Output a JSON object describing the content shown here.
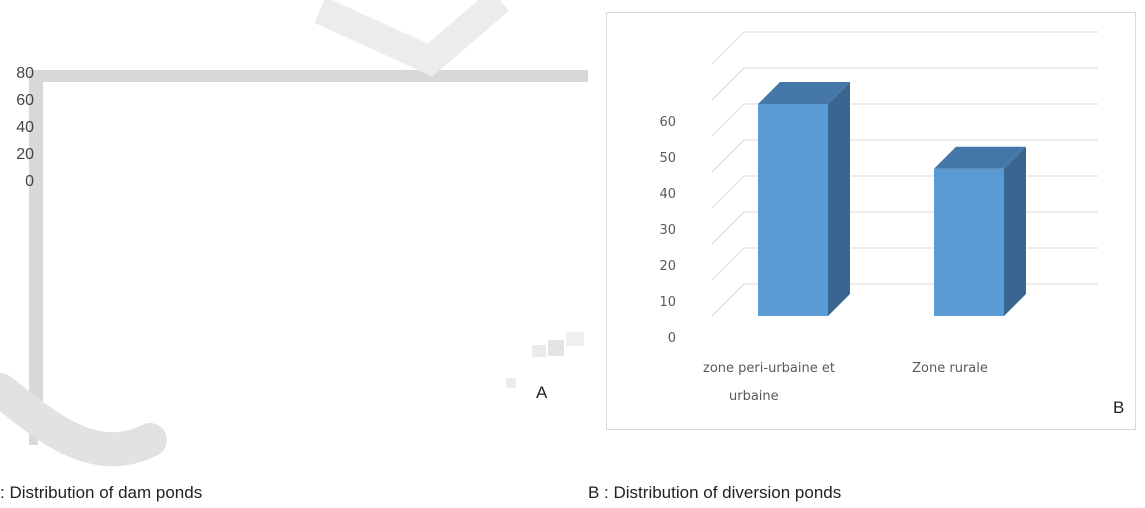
{
  "chartA": {
    "panel_letter": "A",
    "yticks": [
      "80",
      "60",
      "40",
      "20",
      "0"
    ],
    "caption": ": Distribution of dam ponds"
  },
  "chart_data": [
    {
      "type": "bar",
      "title": "",
      "xlabel": "",
      "ylabel": "",
      "yticks": [
        0,
        20,
        40,
        60,
        80
      ],
      "categories": [],
      "values": []
    },
    {
      "type": "bar",
      "title": "",
      "xlabel": "",
      "ylabel": "",
      "ylim": [
        0,
        60
      ],
      "yticks": [
        0,
        10,
        20,
        30,
        40,
        50,
        60
      ],
      "categories": [
        "zone peri-urbaine et urbaine",
        "Zone rurale"
      ],
      "values": [
        60,
        42
      ],
      "grid": true,
      "style": "3d-column",
      "colors": {
        "front": "#5b9bd5",
        "side": "#3a6590",
        "top": "#4577a8"
      }
    }
  ],
  "chartB": {
    "panel_letter": "B",
    "caption": "B : Distribution of diversion ponds",
    "category_label_lines": [
      [
        "zone peri-urbaine et",
        "urbaine"
      ],
      [
        "Zone rurale"
      ]
    ]
  }
}
